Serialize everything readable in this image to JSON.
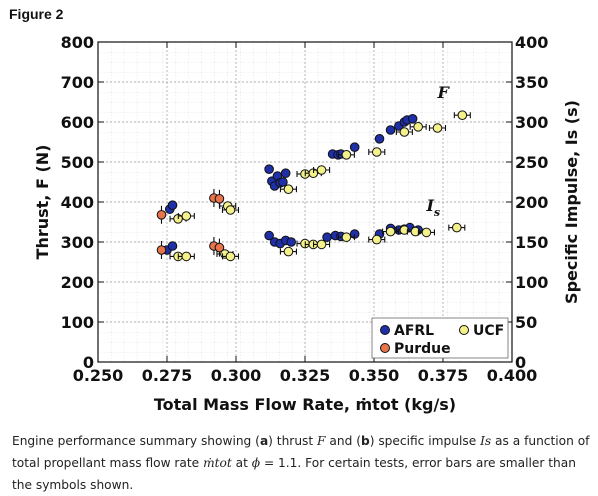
{
  "figure": {
    "label": "Figure 2",
    "caption": {
      "p1": "Engine performance summary showing (",
      "a": "a",
      "p2": ") thrust ",
      "F": "F",
      "p3": " and (",
      "b": "b",
      "p4": ") specific impulse ",
      "Is": "Is",
      "p5": " as a function of total propellant mass flow rate ",
      "mtot": "ṁtot",
      "p6": " at ",
      "phi": "ϕ",
      "p7": " = 1.1. For certain tests, error bars are smaller than the symbols shown."
    }
  },
  "chart_data": {
    "type": "scatter",
    "xlabel": "Total Mass Flow Rate, ṁtot (kg/s)",
    "ylabel_left": "Thrust, F (N)",
    "ylabel_right": "Specific Impulse, Is (s)",
    "xlim": [
      0.25,
      0.4
    ],
    "ylim_left": [
      0,
      800
    ],
    "ylim_right": [
      0,
      400
    ],
    "x_ticks": [
      "0.250",
      "0.275",
      "0.300",
      "0.325",
      "0.350",
      "0.375",
      "0.400"
    ],
    "y_ticks_left": [
      "0",
      "100",
      "200",
      "300",
      "400",
      "500",
      "600",
      "700",
      "800"
    ],
    "y_ticks_right": [
      "0",
      "50",
      "100",
      "150",
      "200",
      "250",
      "300",
      "350",
      "400"
    ],
    "grid": true,
    "legend_position": "bottom-right",
    "annotations": [
      {
        "text": "F",
        "x": 0.373,
        "y_left": 660
      },
      {
        "text": "Is",
        "x": 0.369,
        "y_left": 378
      }
    ],
    "colors": {
      "AFRL": "#1f2fa8",
      "Purdue": "#e8744a",
      "UCF": "#f4f08a",
      "edge": "#111111"
    },
    "series": [
      {
        "name": "AFRL",
        "axis": "left",
        "quantity": "F",
        "x": [
          0.276,
          0.277,
          0.312,
          0.313,
          0.314,
          0.315,
          0.316,
          0.317,
          0.318,
          0.335,
          0.337,
          0.338,
          0.343,
          0.352,
          0.356,
          0.359,
          0.361,
          0.362,
          0.364
        ],
        "y": [
          382,
          392,
          482,
          452,
          440,
          465,
          448,
          450,
          472,
          520,
          518,
          520,
          537,
          558,
          580,
          590,
          600,
          605,
          608
        ]
      },
      {
        "name": "Purdue",
        "axis": "left",
        "quantity": "F",
        "x": [
          0.273,
          0.292,
          0.294
        ],
        "y": [
          368,
          410,
          408
        ]
      },
      {
        "name": "UCF",
        "axis": "left",
        "quantity": "F",
        "x": [
          0.279,
          0.282,
          0.297,
          0.298,
          0.319,
          0.325,
          0.328,
          0.331,
          0.34,
          0.351,
          0.361,
          0.366,
          0.373,
          0.382
        ],
        "y": [
          358,
          365,
          390,
          380,
          432,
          470,
          472,
          480,
          518,
          525,
          575,
          588,
          585,
          617
        ]
      },
      {
        "name": "AFRL",
        "axis": "right",
        "quantity": "Is",
        "x": [
          0.275,
          0.277,
          0.312,
          0.314,
          0.316,
          0.318,
          0.32,
          0.333,
          0.336,
          0.338,
          0.343,
          0.352,
          0.356,
          0.359,
          0.361,
          0.363,
          0.366
        ],
        "y": [
          140,
          145,
          158,
          150,
          148,
          152,
          150,
          156,
          158,
          157,
          160,
          160,
          167,
          165,
          166,
          168,
          165
        ]
      },
      {
        "name": "Purdue",
        "axis": "right",
        "quantity": "Is",
        "x": [
          0.273,
          0.292,
          0.294
        ],
        "y": [
          140,
          145,
          143
        ]
      },
      {
        "name": "UCF",
        "axis": "right",
        "quantity": "Is",
        "x": [
          0.279,
          0.282,
          0.296,
          0.298,
          0.319,
          0.325,
          0.328,
          0.331,
          0.34,
          0.351,
          0.356,
          0.361,
          0.365,
          0.369,
          0.38
        ],
        "y": [
          132,
          132,
          135,
          132,
          138,
          148,
          147,
          147,
          156,
          153,
          163,
          165,
          163,
          162,
          168
        ]
      }
    ],
    "legend": [
      {
        "name": "AFRL"
      },
      {
        "name": "UCF"
      },
      {
        "name": "Purdue"
      }
    ]
  }
}
